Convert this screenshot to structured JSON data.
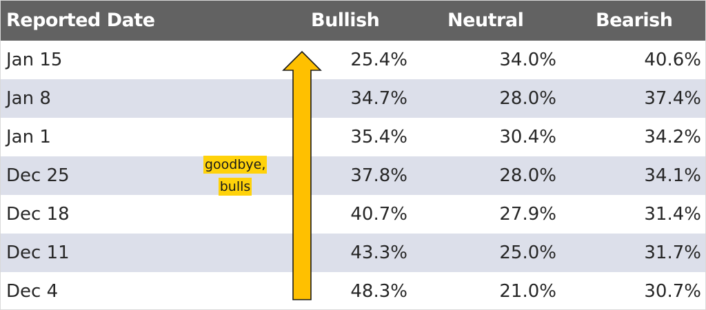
{
  "table": {
    "columns": [
      "Reported Date",
      "Bullish",
      "Neutral",
      "Bearish"
    ],
    "rows": [
      {
        "date": "Jan 15",
        "bullish": "25.4%",
        "neutral": "34.0%",
        "bearish": "40.6%"
      },
      {
        "date": "Jan 8",
        "bullish": "34.7%",
        "neutral": "28.0%",
        "bearish": "37.4%"
      },
      {
        "date": "Jan 1",
        "bullish": "35.4%",
        "neutral": "30.4%",
        "bearish": "34.2%"
      },
      {
        "date": "Dec 25",
        "bullish": "37.8%",
        "neutral": "28.0%",
        "bearish": "34.1%"
      },
      {
        "date": "Dec 18",
        "bullish": "40.7%",
        "neutral": "27.9%",
        "bearish": "31.4%"
      },
      {
        "date": "Dec 11",
        "bullish": "43.3%",
        "neutral": "25.0%",
        "bearish": "31.7%"
      },
      {
        "date": "Dec 4",
        "bullish": "48.3%",
        "neutral": "21.0%",
        "bearish": "30.7%"
      }
    ]
  },
  "annotation": {
    "line1": "goodbye,",
    "line2": "bulls"
  },
  "colors": {
    "header_bg": "#626262",
    "row_shade": "#dcdfea",
    "arrow_fill": "#ffc000",
    "note_highlight": "#ffd20a"
  },
  "icons": {
    "arrow": "up-arrow-icon"
  }
}
